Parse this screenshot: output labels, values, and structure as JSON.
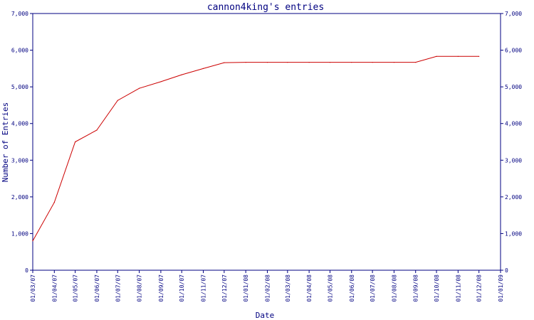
{
  "chart_data": {
    "type": "line",
    "title": "cannon4king's entries",
    "xlabel": "Date",
    "ylabel": "Number of Entries",
    "ylim": [
      0,
      7000
    ],
    "y_ticks": [
      0,
      1000,
      2000,
      3000,
      4000,
      5000,
      6000,
      7000
    ],
    "y_tick_labels": [
      "0",
      "1,000",
      "2,000",
      "3,000",
      "4,000",
      "5,000",
      "6,000",
      "7,000"
    ],
    "x_range": [
      "2007-03-01",
      "2009-01-01"
    ],
    "x_ticks": [
      "2007-03-01",
      "2007-04-01",
      "2007-05-01",
      "2007-06-01",
      "2007-07-01",
      "2007-08-01",
      "2007-09-01",
      "2007-10-01",
      "2007-11-01",
      "2007-12-01",
      "2008-01-01",
      "2008-02-01",
      "2008-03-01",
      "2008-04-01",
      "2008-05-01",
      "2008-06-01",
      "2008-07-01",
      "2008-08-01",
      "2008-09-01",
      "2008-10-01",
      "2008-11-01",
      "2008-12-01",
      "2009-01-01"
    ],
    "x_tick_labels": [
      "01/03/07",
      "01/04/07",
      "01/05/07",
      "01/06/07",
      "01/07/07",
      "01/08/07",
      "01/09/07",
      "01/10/07",
      "01/11/07",
      "01/12/07",
      "01/01/08",
      "01/02/08",
      "01/03/08",
      "01/04/08",
      "01/05/08",
      "01/06/08",
      "01/07/08",
      "01/08/08",
      "01/09/08",
      "01/10/08",
      "01/11/08",
      "01/12/08",
      "01/01/09"
    ],
    "grid": false,
    "line_color": "#cc0000",
    "axis_color": "#000080",
    "series": [
      {
        "x": [
          "2007-03-01",
          "2007-04-01",
          "2007-05-01",
          "2007-06-01",
          "2007-07-01",
          "2007-08-01",
          "2007-09-01",
          "2007-10-01",
          "2007-11-01",
          "2007-12-01",
          "2008-01-01",
          "2008-02-01",
          "2008-03-01",
          "2008-04-01",
          "2008-05-01",
          "2008-06-01",
          "2008-07-01",
          "2008-08-01",
          "2008-09-01",
          "2008-10-01",
          "2008-11-01",
          "2008-12-01"
        ],
        "y": [
          800,
          1850,
          3500,
          3820,
          4630,
          4960,
          5140,
          5330,
          5500,
          5660,
          5670,
          5670,
          5670,
          5670,
          5670,
          5670,
          5670,
          5670,
          5670,
          5830,
          5830,
          5830
        ]
      }
    ]
  }
}
